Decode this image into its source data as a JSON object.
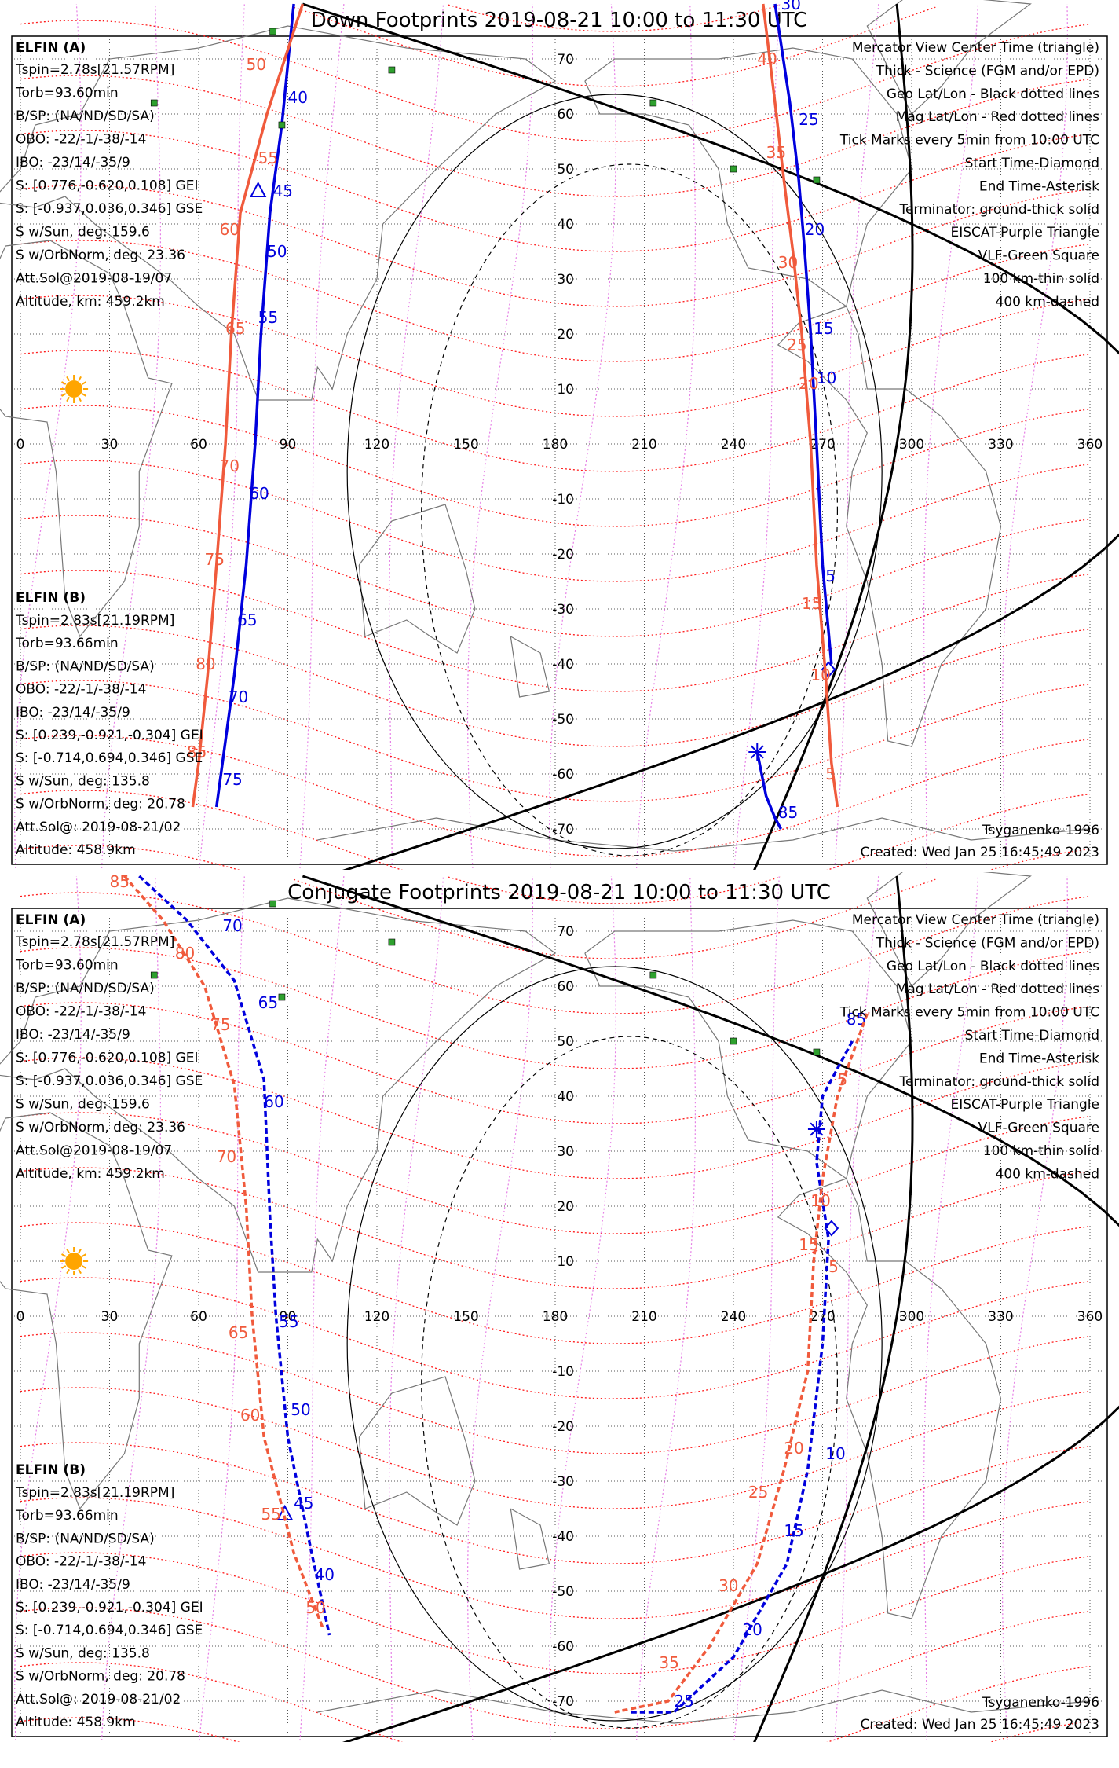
{
  "colors": {
    "elfin_a": "#0000dd",
    "elfin_b": "#f05a3c",
    "mag_grid": "#ff1a1a",
    "geo_grid": "#555555",
    "eiscat": "#e060e0",
    "vlf": "#2ea02e",
    "sun": "#ffa500"
  },
  "panels": [
    {
      "title": "Down Footprints 2019-08-21 10:00 to 11:30 UTC",
      "model": "Tsyganenko-1996",
      "created": "Created: Wed Jan 25 16:45:49 2023"
    },
    {
      "title": "Conjugate Footprints 2019-08-21 10:00 to 11:30 UTC",
      "model": "Tsyganenko-1996",
      "created": "Created: Wed Jan 25 16:45:49 2023"
    }
  ],
  "elfin_a": {
    "name": "ELFIN (A)",
    "lines": [
      "Tspin=2.78s[21.57RPM]",
      "Torb=93.60min",
      "B/SP: (NA/ND/SD/SA)",
      "OBO: -22/-1/-38/-14",
      "IBO: -23/14/-35/9",
      "S: [0.776,-0.620,0.108] GEI",
      "S: [-0.937,0.036,0.346] GSE",
      "S w/Sun, deg: 159.6",
      "S w/OrbNorm, deg: 23.36",
      "Att.Sol@2019-08-19/07",
      "Altitude, km: 459.2km"
    ]
  },
  "elfin_b": {
    "name": "ELFIN (B)",
    "lines": [
      "Tspin=2.83s[21.19RPM]",
      "Torb=93.66min",
      "B/SP: (NA/ND/SD/SA)",
      "OBO: -22/-1/-38/-14",
      "IBO: -23/14/-35/9",
      "S: [0.239,-0.921,-0.304] GEI",
      "S: [-0.714,0.694,0.346] GSE",
      "S w/Sun, deg: 135.8",
      "S w/OrbNorm, deg: 20.78",
      "Att.Sol@: 2019-08-21/02",
      "Altitude: 458.9km"
    ]
  },
  "legend": [
    {
      "text": "Mercator View Center Time (triangle)",
      "color": "#000000"
    },
    {
      "text": "Thick - Science (FGM and/or EPD)",
      "color": "#000000"
    },
    {
      "text": "Geo Lat/Lon - Black dotted lines",
      "color": "#000000"
    },
    {
      "text": "Mag Lat/Lon - Red dotted lines",
      "color": "#ff1a1a"
    },
    {
      "text": "Tick Marks every 5min from 10:00 UTC",
      "color": "#000000"
    },
    {
      "text": "Start Time-Diamond",
      "color": "#000000"
    },
    {
      "text": "End Time-Asterisk",
      "color": "#000000"
    },
    {
      "text": "Terminator: ground-thick solid",
      "color": "#000000"
    },
    {
      "text": "EISCAT-Purple Triangle",
      "color": "#e060e0"
    },
    {
      "text": "VLF-Green Square",
      "color": "#2ea02e"
    },
    {
      "text": "100 km-thin solid",
      "color": "#000000"
    },
    {
      "text": "400 km-dashed",
      "color": "#000000"
    }
  ],
  "axes": {
    "lon_ticks": [
      "0",
      "30",
      "60",
      "90",
      "120",
      "150",
      "180",
      "210",
      "240",
      "270",
      "300",
      "330",
      "360"
    ],
    "lat_ticks": [
      "70",
      "60",
      "50",
      "40",
      "30",
      "20",
      "10",
      "-10",
      "-20",
      "-30",
      "-40",
      "-50",
      "-60",
      "-70"
    ],
    "lon_values": [
      0,
      30,
      60,
      90,
      120,
      150,
      180,
      210,
      240,
      270,
      300,
      330,
      360
    ],
    "lat_values": [
      70,
      60,
      50,
      40,
      30,
      20,
      10,
      -10,
      -20,
      -30,
      -40,
      -50,
      -60,
      -70
    ]
  },
  "vlf_sites": [
    [
      85,
      75
    ],
    [
      125,
      68
    ],
    [
      45,
      62
    ],
    [
      213,
      62
    ],
    [
      240,
      50
    ],
    [
      268,
      48
    ],
    [
      88,
      58
    ]
  ],
  "sun": {
    "lon": 18,
    "lat": 10
  },
  "tracks": {
    "down": {
      "a_pass1": {
        "pts": [
          [
            92,
            80
          ],
          [
            88,
            58
          ],
          [
            84,
            42
          ],
          [
            81,
            20
          ],
          [
            79,
            0
          ],
          [
            76,
            -22
          ],
          [
            72,
            -42
          ],
          [
            68,
            -58
          ],
          [
            66,
            -66
          ]
        ],
        "ticks": [
          {
            "t": "40",
            "lon": 90,
            "lat": 62
          },
          {
            "t": "45",
            "lon": 85,
            "lat": 45
          },
          {
            "t": "50",
            "lon": 83,
            "lat": 34
          },
          {
            "t": "55",
            "lon": 80,
            "lat": 22
          },
          {
            "t": "60",
            "lon": 77,
            "lat": -10
          },
          {
            "t": "65",
            "lon": 73,
            "lat": -33
          },
          {
            "t": "70",
            "lon": 70,
            "lat": -47
          },
          {
            "t": "75",
            "lon": 68,
            "lat": -62
          }
        ],
        "triangle": [
          80,
          46
        ]
      },
      "b_pass1": {
        "pts": [
          [
            95,
            80
          ],
          [
            83,
            60
          ],
          [
            74,
            42
          ],
          [
            71,
            20
          ],
          [
            69,
            0
          ],
          [
            66,
            -22
          ],
          [
            63,
            -42
          ],
          [
            60,
            -58
          ],
          [
            58,
            -66
          ]
        ],
        "ticks": [
          {
            "t": "50",
            "lon": 76,
            "lat": 68
          },
          {
            "t": "55",
            "lon": 80,
            "lat": 51
          },
          {
            "t": "60",
            "lon": 67,
            "lat": 38
          },
          {
            "t": "65",
            "lon": 69,
            "lat": 20
          },
          {
            "t": "70",
            "lon": 67,
            "lat": -5
          },
          {
            "t": "75",
            "lon": 62,
            "lat": -22
          },
          {
            "t": "80",
            "lon": 59,
            "lat": -41
          },
          {
            "t": "85",
            "lon": 56,
            "lat": -57
          }
        ]
      },
      "a_pass2": {
        "pts": [
          [
            254,
            80
          ],
          [
            259,
            62
          ],
          [
            262,
            48
          ],
          [
            264,
            35
          ],
          [
            266,
            20
          ],
          [
            268,
            0
          ],
          [
            270,
            -22
          ],
          [
            273,
            -40
          ]
        ],
        "ticks": [
          {
            "t": "30",
            "lon": 256,
            "lat": 79
          },
          {
            "t": "25",
            "lon": 262,
            "lat": 58
          },
          {
            "t": "20",
            "lon": 264,
            "lat": 38
          },
          {
            "t": "15",
            "lon": 267,
            "lat": 20
          },
          {
            "t": "10",
            "lon": 268,
            "lat": 11
          },
          {
            "t": "5",
            "lon": 271,
            "lat": -25
          }
        ],
        "diamond": [
          272,
          -41
        ]
      },
      "b_pass2": {
        "pts": [
          [
            250,
            80
          ],
          [
            254,
            62
          ],
          [
            257,
            48
          ],
          [
            260,
            35
          ],
          [
            263,
            20
          ],
          [
            266,
            0
          ],
          [
            268,
            -22
          ],
          [
            271,
            -42
          ],
          [
            273,
            -58
          ],
          [
            275,
            -66
          ]
        ],
        "ticks": [
          {
            "t": "40",
            "lon": 248,
            "lat": 69
          },
          {
            "t": "35",
            "lon": 251,
            "lat": 52
          },
          {
            "t": "30",
            "lon": 255,
            "lat": 32
          },
          {
            "t": "25",
            "lon": 258,
            "lat": 17
          },
          {
            "t": "20",
            "lon": 262,
            "lat": 10
          },
          {
            "t": "15",
            "lon": 263,
            "lat": -30
          },
          {
            "t": "10",
            "lon": 266,
            "lat": -43
          },
          {
            "t": "5",
            "lon": 271,
            "lat": -61
          }
        ]
      },
      "a_end": {
        "pts": [
          [
            248,
            -56
          ],
          [
            251,
            -64
          ],
          [
            254,
            -68
          ],
          [
            256,
            -70
          ]
        ],
        "ticks": [
          {
            "t": "85",
            "lon": 255,
            "lat": -68
          }
        ],
        "asterisk": [
          248,
          -56
        ]
      }
    },
    "conj": {
      "a_pass1": {
        "pts": [
          [
            40,
            80
          ],
          [
            56,
            72
          ],
          [
            72,
            61
          ],
          [
            82,
            43
          ],
          [
            84,
            18
          ],
          [
            86,
            0
          ],
          [
            90,
            -22
          ],
          [
            98,
            -43
          ],
          [
            104,
            -58
          ]
        ],
        "ticks": [
          {
            "t": "70",
            "lon": 68,
            "lat": 70
          },
          {
            "t": "65",
            "lon": 80,
            "lat": 56
          },
          {
            "t": "60",
            "lon": 82,
            "lat": 38
          },
          {
            "t": "55",
            "lon": 87,
            "lat": -2
          },
          {
            "t": "50",
            "lon": 91,
            "lat": -18
          },
          {
            "t": "45",
            "lon": 92,
            "lat": -35
          },
          {
            "t": "40",
            "lon": 99,
            "lat": -48
          }
        ],
        "triangle": [
          89,
          -36
        ]
      },
      "b_pass1": {
        "pts": [
          [
            35,
            80
          ],
          [
            48,
            72
          ],
          [
            62,
            60
          ],
          [
            72,
            42
          ],
          [
            76,
            20
          ],
          [
            78,
            0
          ],
          [
            82,
            -22
          ],
          [
            92,
            -43
          ],
          [
            102,
            -57
          ]
        ],
        "ticks": [
          {
            "t": "85",
            "lon": 30,
            "lat": 78
          },
          {
            "t": "80",
            "lon": 52,
            "lat": 65
          },
          {
            "t": "75",
            "lon": 64,
            "lat": 52
          },
          {
            "t": "70",
            "lon": 66,
            "lat": 28
          },
          {
            "t": "65",
            "lon": 70,
            "lat": -4
          },
          {
            "t": "60",
            "lon": 74,
            "lat": -19
          },
          {
            "t": "55",
            "lon": 81,
            "lat": -37
          },
          {
            "t": "50",
            "lon": 96,
            "lat": -54
          }
        ]
      },
      "a_pass2": {
        "pts": [
          [
            280,
            50
          ],
          [
            270,
            40
          ],
          [
            268,
            28
          ],
          [
            272,
            14
          ],
          [
            270,
            -5
          ],
          [
            265,
            -28
          ],
          [
            258,
            -45
          ],
          [
            240,
            -62
          ],
          [
            220,
            -72
          ],
          [
            205,
            -72
          ]
        ],
        "ticks": [
          {
            "t": "85",
            "lon": 278,
            "lat": 53
          },
          {
            "t": "10",
            "lon": 271,
            "lat": -26
          },
          {
            "t": "15",
            "lon": 257,
            "lat": -40
          },
          {
            "t": "20",
            "lon": 243,
            "lat": -58
          },
          {
            "t": "25",
            "lon": 220,
            "lat": -71
          }
        ],
        "asterisk": [
          268,
          34
        ],
        "diamond": [
          273,
          16
        ]
      },
      "b_pass2": {
        "pts": [
          [
            285,
            55
          ],
          [
            275,
            40
          ],
          [
            270,
            25
          ],
          [
            267,
            10
          ],
          [
            265,
            -10
          ],
          [
            257,
            -28
          ],
          [
            248,
            -45
          ],
          [
            232,
            -60
          ],
          [
            218,
            -70
          ],
          [
            200,
            -72
          ]
        ],
        "ticks": [
          {
            "t": "5",
            "lon": 275,
            "lat": 42
          },
          {
            "t": "10",
            "lon": 266,
            "lat": 20
          },
          {
            "t": "15",
            "lon": 262,
            "lat": 12
          },
          {
            "t": "5",
            "lon": 272,
            "lat": 8
          },
          {
            "t": "20",
            "lon": 257,
            "lat": -25
          },
          {
            "t": "25",
            "lon": 245,
            "lat": -33
          },
          {
            "t": "30",
            "lon": 235,
            "lat": -50
          },
          {
            "t": "35",
            "lon": 215,
            "lat": -64
          }
        ]
      }
    }
  }
}
